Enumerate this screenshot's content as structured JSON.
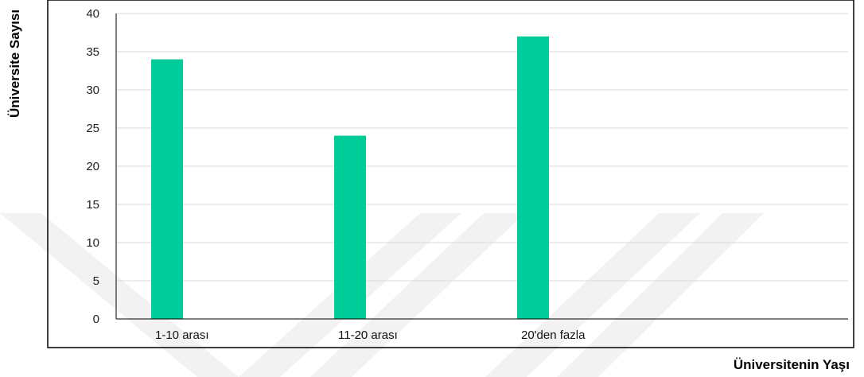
{
  "chart_data": {
    "type": "bar",
    "categories": [
      "1-10 arası",
      "11-20 arası",
      "20'den fazla"
    ],
    "values": [
      34,
      24,
      37
    ],
    "xlabel": "Üniversitenin Yaşı",
    "ylabel": "Üniversite Sayısı",
    "ylim": [
      0,
      40
    ],
    "yticks": [
      0,
      5,
      10,
      15,
      20,
      25,
      30,
      35,
      40
    ],
    "grid": true,
    "legend": "none",
    "bar_color": "#00cc99",
    "grid_color": "#d9d9d9",
    "axis_color": "#000000"
  }
}
